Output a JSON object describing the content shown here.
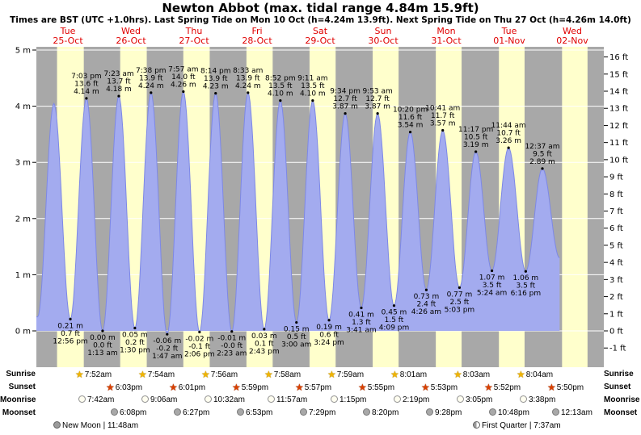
{
  "title": "Newton Abbot (max. tidal range 4.84m 15.9ft)",
  "subtitle": "Times are BST (UTC +1.0hrs). Last Spring Tide on Mon 10 Oct (h=4.24m 13.9ft). Next Spring Tide on Thu 27 Oct (h=4.26m 14.0ft)",
  "colors": {
    "night": "#a8a8a8",
    "day": "#ffffcc",
    "tide_fill": "#a3abef",
    "tide_stroke": "#7d88e6",
    "day_label_red": "#e00000",
    "grid": "#ffffff",
    "text": "#000000"
  },
  "chart_data": {
    "type": "area",
    "description": "semi-diurnal tide height curve with day/night background bands",
    "days": [
      {
        "name": "Tue",
        "date": "25-Oct"
      },
      {
        "name": "Wed",
        "date": "26-Oct"
      },
      {
        "name": "Thu",
        "date": "27-Oct"
      },
      {
        "name": "Fri",
        "date": "28-Oct"
      },
      {
        "name": "Sat",
        "date": "29-Oct"
      },
      {
        "name": "Sun",
        "date": "30-Oct"
      },
      {
        "name": "Mon",
        "date": "31-Oct"
      },
      {
        "name": "Tue",
        "date": "01-Nov"
      },
      {
        "name": "Wed",
        "date": "02-Nov"
      }
    ],
    "y_axis_left": {
      "unit": "m",
      "ticks": [
        0,
        1,
        2,
        3,
        4,
        5
      ]
    },
    "y_axis_right": {
      "unit": "ft",
      "tick_min": -1,
      "tick_max": 16
    },
    "last_day_stripe": {
      "rise": "8:06am",
      "set": "5:48pm"
    },
    "tide_events": [
      {
        "day": 0,
        "time": "12:30 am",
        "type": "low",
        "height_m": 0.25,
        "inferred": true
      },
      {
        "day": 0,
        "time": "6:40 am",
        "type": "high",
        "height_m": 4.05,
        "inferred": true
      },
      {
        "day": 0,
        "time": "12:56 pm",
        "type": "low",
        "height_m": 0.21,
        "labels": [
          "0.21 m",
          "0.7 ft",
          "12:56 pm"
        ]
      },
      {
        "day": 0,
        "time": "7:03 pm",
        "type": "high",
        "height_m": 4.14,
        "labels": [
          "7:03 pm",
          "13.6 ft",
          "4.14 m"
        ]
      },
      {
        "day": 1,
        "time": "1:13 am",
        "type": "low",
        "height_m": 0.0,
        "labels": [
          "0.00 m",
          "0.0 ft",
          "1:13 am"
        ]
      },
      {
        "day": 1,
        "time": "7:23 am",
        "type": "high",
        "height_m": 4.18,
        "labels": [
          "7:23 am",
          "13.7 ft",
          "4.18 m"
        ]
      },
      {
        "day": 1,
        "time": "1:30 pm",
        "type": "low",
        "height_m": 0.05,
        "labels": [
          "0.05 m",
          "0.2 ft",
          "1:30 pm"
        ]
      },
      {
        "day": 1,
        "time": "7:38 pm",
        "type": "high",
        "height_m": 4.24,
        "labels": [
          "7:38 pm",
          "13.9 ft",
          "4.24 m"
        ]
      },
      {
        "day": 2,
        "time": "1:47 am",
        "type": "low",
        "height_m": -0.06,
        "labels": [
          "-0.06 m",
          "-0.2 ft",
          "1:47 am"
        ]
      },
      {
        "day": 2,
        "time": "7:57 am",
        "type": "high",
        "height_m": 4.26,
        "labels": [
          "7:57 am",
          "14.0 ft",
          "4.26 m"
        ]
      },
      {
        "day": 2,
        "time": "2:06 pm",
        "type": "low",
        "height_m": -0.02,
        "labels": [
          "-0.02 m",
          "-0.1 ft",
          "2:06 pm"
        ]
      },
      {
        "day": 2,
        "time": "8:14 pm",
        "type": "high",
        "height_m": 4.23,
        "labels": [
          "8:14 pm",
          "13.9 ft",
          "4.23 m"
        ]
      },
      {
        "day": 3,
        "time": "2:23 am",
        "type": "low",
        "height_m": -0.01,
        "labels": [
          "-0.01 m",
          "-0.0 ft",
          "2:23 am"
        ]
      },
      {
        "day": 3,
        "time": "8:33 am",
        "type": "high",
        "height_m": 4.24,
        "labels": [
          "8:33 am",
          "13.9 ft",
          "4.24 m"
        ]
      },
      {
        "day": 3,
        "time": "2:43 pm",
        "type": "low",
        "height_m": 0.03,
        "labels": [
          "0.03 m",
          "0.1 ft",
          "2:43 pm"
        ]
      },
      {
        "day": 3,
        "time": "8:52 pm",
        "type": "high",
        "height_m": 4.1,
        "labels": [
          "8:52 pm",
          "13.5 ft",
          "4.10 m"
        ]
      },
      {
        "day": 4,
        "time": "3:00 am",
        "type": "low",
        "height_m": 0.15,
        "labels": [
          "0.15 m",
          "0.5 ft",
          "3:00 am"
        ]
      },
      {
        "day": 4,
        "time": "9:11 am",
        "type": "high",
        "height_m": 4.1,
        "labels": [
          "9:11 am",
          "13.5 ft",
          "4.10 m"
        ]
      },
      {
        "day": 4,
        "time": "3:24 pm",
        "type": "low",
        "height_m": 0.19,
        "labels": [
          "0.19 m",
          "0.6 ft",
          "3:24 pm"
        ]
      },
      {
        "day": 4,
        "time": "9:34 pm",
        "type": "high",
        "height_m": 3.87,
        "labels": [
          "9:34 pm",
          "12.7 ft",
          "3.87 m"
        ]
      },
      {
        "day": 5,
        "time": "3:41 am",
        "type": "low",
        "height_m": 0.41,
        "labels": [
          "0.41 m",
          "1.3 ft",
          "3:41 am"
        ]
      },
      {
        "day": 5,
        "time": "9:53 am",
        "type": "high",
        "height_m": 3.87,
        "labels": [
          "9:53 am",
          "12.7 ft",
          "3.87 m"
        ]
      },
      {
        "day": 5,
        "time": "4:09 pm",
        "type": "low",
        "height_m": 0.45,
        "labels": [
          "0.45 m",
          "1.5 ft",
          "4:09 pm"
        ]
      },
      {
        "day": 5,
        "time": "10:20 pm",
        "type": "high",
        "height_m": 3.54,
        "labels": [
          "10:20 pm",
          "11.6 ft",
          "3.54 m"
        ]
      },
      {
        "day": 6,
        "time": "4:26 am",
        "type": "low",
        "height_m": 0.73,
        "labels": [
          "0.73 m",
          "2.4 ft",
          "4:26 am"
        ]
      },
      {
        "day": 6,
        "time": "10:41 am",
        "type": "high",
        "height_m": 3.57,
        "labels": [
          "10:41 am",
          "11.7 ft",
          "3.57 m"
        ]
      },
      {
        "day": 6,
        "time": "5:03 pm",
        "type": "low",
        "height_m": 0.77,
        "labels": [
          "0.77 m",
          "2.5 ft",
          "5:03 pm"
        ]
      },
      {
        "day": 6,
        "time": "11:17 pm",
        "type": "high",
        "height_m": 3.19,
        "labels": [
          "11:17 pm",
          "10.5 ft",
          "3.19 m"
        ]
      },
      {
        "day": 7,
        "time": "5:24 am",
        "type": "low",
        "height_m": 1.07,
        "labels": [
          "1.07 m",
          "3.5 ft",
          "5:24 am"
        ]
      },
      {
        "day": 7,
        "time": "11:44 am",
        "type": "high",
        "height_m": 3.26,
        "labels": [
          "11:44 am",
          "10.7 ft",
          "3.26 m"
        ]
      },
      {
        "day": 7,
        "time": "6:16 pm",
        "type": "low",
        "height_m": 1.06,
        "labels": [
          "1.06 m",
          "3.5 ft",
          "6:16 pm"
        ]
      },
      {
        "day": 8,
        "time": "12:37 am",
        "type": "high",
        "height_m": 2.89,
        "labels": [
          "12:37 am",
          "9.5 ft",
          "2.89 m"
        ]
      },
      {
        "day": 8,
        "time": "7:10 am",
        "type": "low",
        "height_m": 1.3,
        "inferred": true
      }
    ]
  },
  "sun_moon": {
    "rows": [
      {
        "label": "Sunrise",
        "icon": "sunrise-star",
        "times": [
          "7:52am",
          "7:54am",
          "7:56am",
          "7:58am",
          "7:59am",
          "8:01am",
          "8:03am",
          "8:04am"
        ]
      },
      {
        "label": "Sunset",
        "icon": "sunset-star",
        "times": [
          "6:03pm",
          "6:01pm",
          "5:59pm",
          "5:57pm",
          "5:55pm",
          "5:53pm",
          "5:52pm",
          "5:50pm"
        ]
      },
      {
        "label": "Moonrise",
        "icon": "moonrise-circle",
        "times": [
          "7:42am",
          "9:06am",
          "10:32am",
          "11:57am",
          "1:15pm",
          "2:19pm",
          "3:05pm",
          "3:38pm"
        ]
      },
      {
        "label": "Moonset",
        "icon": "moonset-circle",
        "times": [
          "6:08pm",
          "6:27pm",
          "6:53pm",
          "7:29pm",
          "8:20pm",
          "9:28pm",
          "10:48pm",
          "12:13am"
        ]
      }
    ],
    "phases": [
      {
        "label": "New Moon | 11:48am",
        "icon": "new-moon",
        "day": 0
      },
      {
        "label": "First Quarter | 7:37am",
        "icon": "first-quarter",
        "day": 7
      }
    ]
  }
}
